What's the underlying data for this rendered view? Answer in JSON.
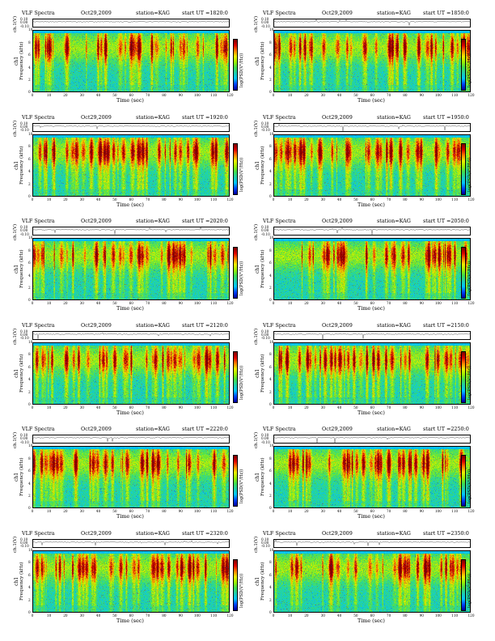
{
  "header": {
    "left": "VLF Spectra",
    "date": "Oct29,2009",
    "station": "station=KAG"
  },
  "axis_labels": {
    "ch1_amp": "ch.1(V)",
    "ch1": "ch1",
    "freq": "Frequency (kHz)",
    "time": "Time (sec)",
    "colorbar": "log(PSD(V²/Hz))"
  },
  "colors": {
    "scale": [
      "#0000a0",
      "#0044ff",
      "#00c8ff",
      "#20d0b0",
      "#40e050",
      "#a0f000",
      "#f0f000",
      "#ff8000",
      "#e00000",
      "#800000"
    ]
  },
  "chart_data": [
    {
      "type": "heatmap",
      "title": "VLF Spectra  Oct29,2009  station=KAG  start UT =1820:0",
      "start_ut": "start UT =1820:0",
      "xlabel": "Time (sec)",
      "ylabel": "Frequency (kHz)",
      "xlim": [
        0,
        120
      ],
      "ylim": [
        0,
        10
      ],
      "xticks": [
        0,
        10,
        20,
        30,
        40,
        50,
        60,
        70,
        80,
        90,
        100,
        110,
        120
      ],
      "yticks": [
        0,
        2,
        4,
        6,
        8,
        10
      ],
      "amp_ticks": [
        "0.10",
        "0.00",
        "-0.10"
      ]
    },
    {
      "type": "heatmap",
      "title": "VLF Spectra  Oct29,2009  station=KAG  start UT =1850:0",
      "start_ut": "start UT =1850:0",
      "xlabel": "Time (sec)",
      "ylabel": "Frequency (kHz)",
      "xlim": [
        0,
        120
      ],
      "ylim": [
        0,
        10
      ],
      "xticks": [
        0,
        10,
        20,
        30,
        40,
        50,
        60,
        70,
        80,
        90,
        100,
        110,
        120
      ],
      "yticks": [
        0,
        2,
        4,
        6,
        8,
        10
      ],
      "amp_ticks": [
        "0.10",
        "0.00",
        "-0.10"
      ]
    },
    {
      "type": "heatmap",
      "title": "VLF Spectra  Oct29,2009  station=KAG  start UT =1920:0",
      "start_ut": "start UT =1920:0",
      "xlabel": "Time (sec)",
      "ylabel": "Frequency (kHz)",
      "xlim": [
        0,
        120
      ],
      "ylim": [
        0,
        10
      ],
      "xticks": [
        0,
        10,
        20,
        30,
        40,
        50,
        60,
        70,
        80,
        90,
        100,
        110,
        120
      ],
      "yticks": [
        0,
        2,
        4,
        6,
        8,
        10
      ],
      "amp_ticks": [
        "0.10",
        "0.00",
        "-0.10"
      ]
    },
    {
      "type": "heatmap",
      "title": "VLF Spectra  Oct29,2009  station=KAG  start UT =1950:0",
      "start_ut": "start UT =1950:0",
      "xlabel": "Time (sec)",
      "ylabel": "Frequency (kHz)",
      "xlim": [
        0,
        120
      ],
      "ylim": [
        0,
        10
      ],
      "xticks": [
        0,
        10,
        20,
        30,
        40,
        50,
        60,
        70,
        80,
        90,
        100,
        110,
        120
      ],
      "yticks": [
        0,
        2,
        4,
        6,
        8,
        10
      ],
      "amp_ticks": [
        "0.10",
        "0.00",
        "-0.10"
      ]
    },
    {
      "type": "heatmap",
      "title": "VLF Spectra  Oct29,2009  station=KAG  start UT =2020:0",
      "start_ut": "start UT =2020:0",
      "xlabel": "Time (sec)",
      "ylabel": "Frequency (kHz)",
      "xlim": [
        0,
        120
      ],
      "ylim": [
        0,
        10
      ],
      "xticks": [
        0,
        10,
        20,
        30,
        40,
        50,
        60,
        70,
        80,
        90,
        100,
        110,
        120
      ],
      "yticks": [
        0,
        2,
        4,
        6,
        8,
        10
      ],
      "amp_ticks": [
        "0.10",
        "0.00",
        "-0.10"
      ]
    },
    {
      "type": "heatmap",
      "title": "VLF Spectra  Oct29,2009  station=KAG  start UT =2050:0",
      "start_ut": "start UT =2050:0",
      "xlabel": "Time (sec)",
      "ylabel": "Frequency (kHz)",
      "xlim": [
        0,
        120
      ],
      "ylim": [
        0,
        10
      ],
      "xticks": [
        0,
        10,
        20,
        30,
        40,
        50,
        60,
        70,
        80,
        90,
        100,
        110,
        120
      ],
      "yticks": [
        0,
        2,
        4,
        6,
        8,
        10
      ],
      "amp_ticks": [
        "0.10",
        "0.00",
        "-0.10"
      ]
    },
    {
      "type": "heatmap",
      "title": "VLF Spectra  Oct29,2009  station=KAG  start UT =2120:0",
      "start_ut": "start UT =2120:0",
      "xlabel": "Time (sec)",
      "ylabel": "Frequency (kHz)",
      "xlim": [
        0,
        120
      ],
      "ylim": [
        0,
        10
      ],
      "xticks": [
        0,
        10,
        20,
        30,
        40,
        50,
        60,
        70,
        80,
        90,
        100,
        110,
        120
      ],
      "yticks": [
        0,
        2,
        4,
        6,
        8,
        10
      ],
      "amp_ticks": [
        "0.10",
        "0.00",
        "-0.10"
      ]
    },
    {
      "type": "heatmap",
      "title": "VLF Spectra  Oct29,2009  station=KAG  start UT =2150:0",
      "start_ut": "start UT =2150:0",
      "xlabel": "Time (sec)",
      "ylabel": "Frequency (kHz)",
      "xlim": [
        0,
        120
      ],
      "ylim": [
        0,
        10
      ],
      "xticks": [
        0,
        10,
        20,
        30,
        40,
        50,
        60,
        70,
        80,
        90,
        100,
        110,
        120
      ],
      "yticks": [
        0,
        2,
        4,
        6,
        8,
        10
      ],
      "amp_ticks": [
        "0.10",
        "0.00",
        "-0.10"
      ]
    },
    {
      "type": "heatmap",
      "title": "VLF Spectra  Oct29,2009  station=KAG  start UT =2220:0",
      "start_ut": "start UT =2220:0",
      "xlabel": "Time (sec)",
      "ylabel": "Frequency (kHz)",
      "xlim": [
        0,
        120
      ],
      "ylim": [
        0,
        10
      ],
      "xticks": [
        0,
        10,
        20,
        30,
        40,
        50,
        60,
        70,
        80,
        90,
        100,
        110,
        120
      ],
      "yticks": [
        0,
        2,
        4,
        6,
        8,
        10
      ],
      "amp_ticks": [
        "0.10",
        "0.00",
        "-0.10"
      ]
    },
    {
      "type": "heatmap",
      "title": "VLF Spectra  Oct29,2009  station=KAG  start UT =2250:0",
      "start_ut": "start UT =2250:0",
      "xlabel": "Time (sec)",
      "ylabel": "Frequency (kHz)",
      "xlim": [
        0,
        120
      ],
      "ylim": [
        0,
        10
      ],
      "xticks": [
        0,
        10,
        20,
        30,
        40,
        50,
        60,
        70,
        80,
        90,
        100,
        110,
        120
      ],
      "yticks": [
        0,
        2,
        4,
        6,
        8,
        10
      ],
      "amp_ticks": [
        "0.10",
        "0.00",
        "-0.10"
      ]
    },
    {
      "type": "heatmap",
      "title": "VLF Spectra  Oct29,2009  station=KAG  start UT =2320:0",
      "start_ut": "start UT =2320:0",
      "xlabel": "Time (sec)",
      "ylabel": "Frequency (kHz)",
      "xlim": [
        0,
        120
      ],
      "ylim": [
        0,
        10
      ],
      "xticks": [
        0,
        10,
        20,
        30,
        40,
        50,
        60,
        70,
        80,
        90,
        100,
        110,
        120
      ],
      "yticks": [
        0,
        2,
        4,
        6,
        8,
        10
      ],
      "amp_ticks": [
        "0.10",
        "0.00",
        "-0.10"
      ]
    },
    {
      "type": "heatmap",
      "title": "VLF Spectra  Oct29,2009  station=KAG  start UT =2350:0",
      "start_ut": "start UT =2350:0",
      "xlabel": "Time (sec)",
      "ylabel": "Frequency (kHz)",
      "xlim": [
        0,
        120
      ],
      "ylim": [
        0,
        10
      ],
      "xticks": [
        0,
        10,
        20,
        30,
        40,
        50,
        60,
        70,
        80,
        90,
        100,
        110,
        120
      ],
      "yticks": [
        0,
        2,
        4,
        6,
        8,
        10
      ],
      "amp_ticks": [
        "0.10",
        "0.00",
        "-0.10"
      ]
    }
  ]
}
